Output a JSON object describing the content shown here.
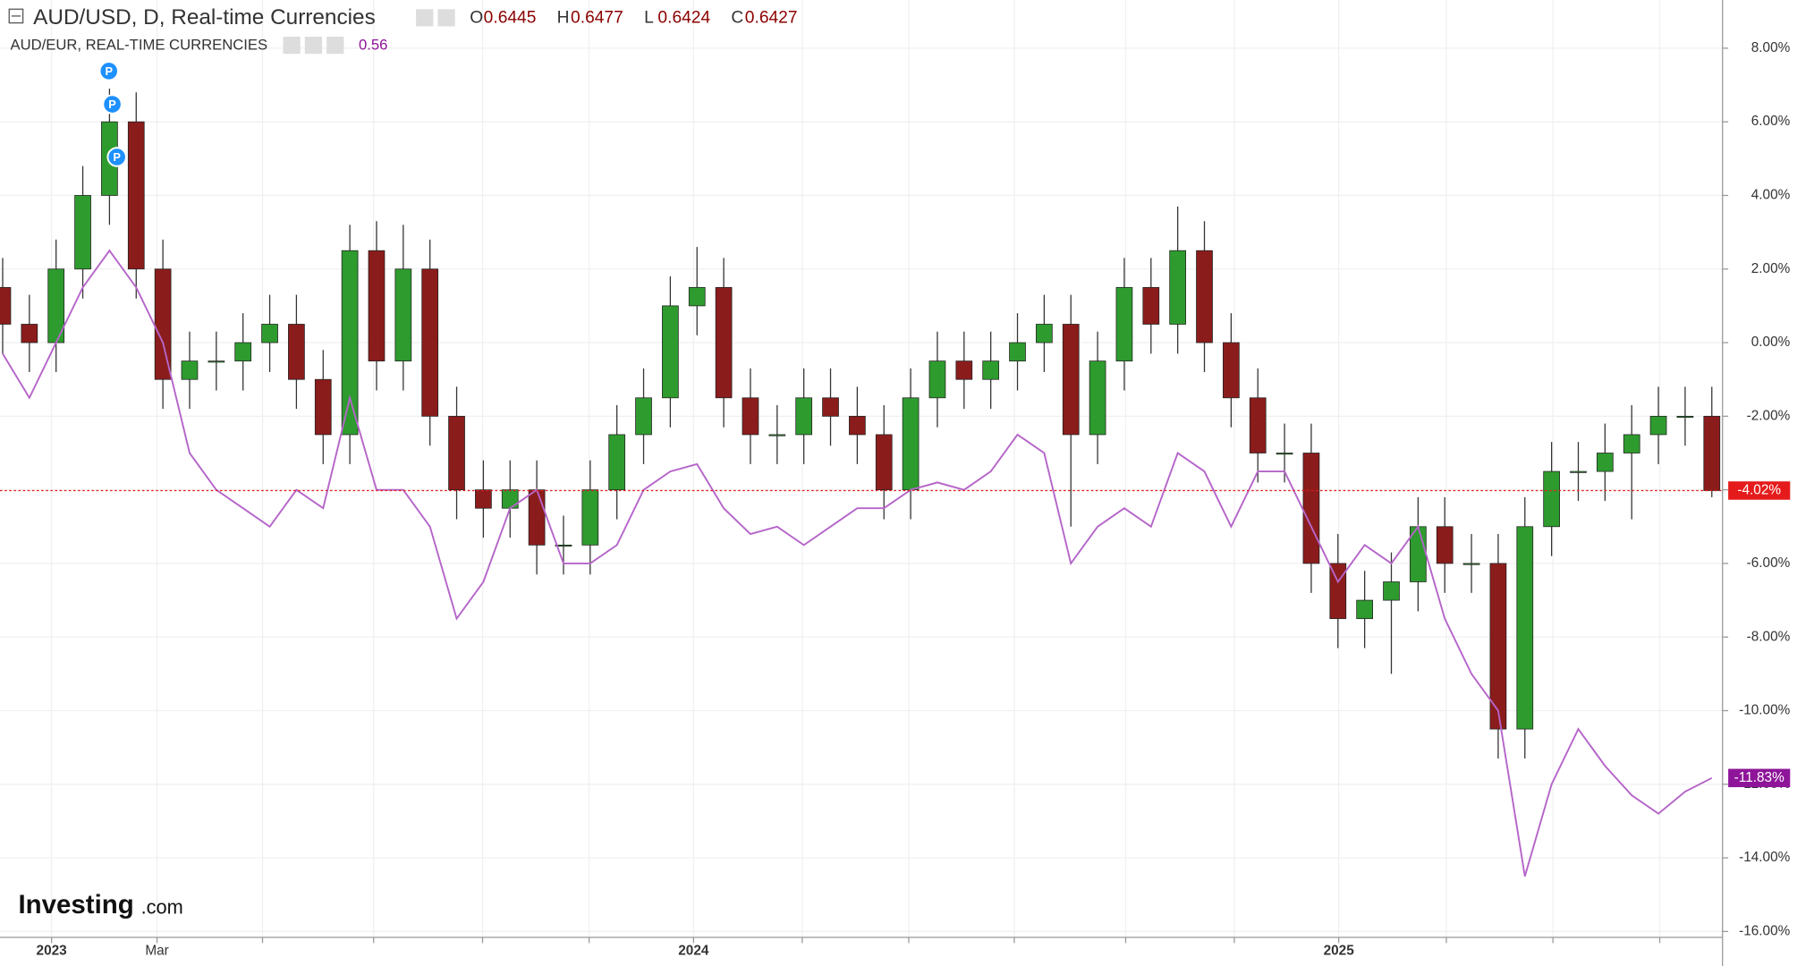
{
  "chart_data": {
    "type": "candlestick",
    "header": {
      "title": "AUD/USD, D, Real-time Currencies",
      "ohlc": [
        {
          "label": "O",
          "value": 0.6445
        },
        {
          "label": "H",
          "value": 0.6477
        },
        {
          "label": "L",
          "value": 0.6424
        },
        {
          "label": "C",
          "value": 0.6427
        }
      ],
      "compare_title": "AUD/EUR, REAL-TIME CURRENCIES",
      "compare_value": 0.56
    },
    "markers": [
      "P",
      "P",
      "P"
    ],
    "logo": {
      "name": "Investing",
      "suffix": ".com"
    },
    "x": [
      0,
      1,
      2,
      3,
      4,
      5,
      6,
      7,
      8,
      9,
      10,
      11,
      12,
      13,
      14,
      15,
      16,
      17,
      18,
      19,
      20,
      21,
      22,
      23,
      24,
      25,
      26,
      27,
      28,
      29,
      30,
      31,
      32,
      33,
      34,
      35,
      36,
      37,
      38,
      39,
      40,
      41,
      42,
      43,
      44,
      45,
      46,
      47,
      48,
      49,
      50,
      51,
      52,
      53,
      54,
      55,
      56,
      57,
      58,
      59,
      60,
      61,
      62,
      63,
      64
    ],
    "xlim": [
      -0.1,
      64.4
    ],
    "xticks": [
      {
        "value": 1.83,
        "label": "2023"
      },
      {
        "value": 5.78,
        "label": "Mar"
      },
      {
        "value": 9.73,
        "label": null
      },
      {
        "value": 13.89,
        "label": null
      },
      {
        "value": 17.97,
        "label": null
      },
      {
        "value": 21.96,
        "label": null
      },
      {
        "value": 25.87,
        "label": "2024"
      },
      {
        "value": 29.94,
        "label": null
      },
      {
        "value": 33.93,
        "label": null
      },
      {
        "value": 37.88,
        "label": null
      },
      {
        "value": 42.05,
        "label": null
      },
      {
        "value": 46.12,
        "label": null
      },
      {
        "value": 50.03,
        "label": "2025"
      },
      {
        "value": 54.06,
        "label": null
      },
      {
        "value": 58.05,
        "label": null
      },
      {
        "value": 62.05,
        "label": null
      }
    ],
    "ylim": [
      -16.16,
      9.31
    ],
    "yticks": [
      {
        "value": 8,
        "label": "8.00%"
      },
      {
        "value": 6,
        "label": "6.00%"
      },
      {
        "value": 4,
        "label": "4.00%"
      },
      {
        "value": 2,
        "label": "2.00%"
      },
      {
        "value": 0,
        "label": "0.00%"
      },
      {
        "value": -2,
        "label": "-2.00%"
      },
      {
        "value": -4,
        "label": "-4.00%"
      },
      {
        "value": -6,
        "label": "-6.00%"
      },
      {
        "value": -8,
        "label": "-8.00%"
      },
      {
        "value": -10,
        "label": "-10.00%"
      },
      {
        "value": -12,
        "label": "-12.00%"
      },
      {
        "value": -14,
        "label": "-14.00%"
      },
      {
        "value": -16,
        "label": "-16.00%"
      }
    ],
    "grid": true,
    "series": [
      {
        "name": "AUD/USD",
        "type": "candlestick",
        "up_color": "#2e9b2e",
        "down_color": "#8b1c1c",
        "color": "#e51b1b",
        "last_label": "-4.02%",
        "open": [
          1.5,
          0.5,
          0,
          2,
          4,
          6,
          2,
          -1,
          -0.5,
          -0.5,
          0,
          0.5,
          -1,
          -2.5,
          2.5,
          -0.5,
          2,
          -2,
          -4,
          -4.5,
          -4,
          -5.5,
          -5.5,
          -4,
          -2.5,
          -1.5,
          1,
          1.5,
          -1.5,
          -2.5,
          -2.5,
          -1.5,
          -2,
          -2.5,
          -4,
          -1.5,
          -0.5,
          -1,
          -0.5,
          0,
          0.5,
          -2.5,
          -0.5,
          1.5,
          0.5,
          2.5,
          0,
          -1.5,
          -3,
          -3,
          -6,
          -7.5,
          -7,
          -6.5,
          -5,
          -6,
          -6,
          -10.5,
          -5,
          -3.5,
          -3.5,
          -3,
          -2.5,
          -2,
          -2
        ],
        "high": [
          2.3,
          1.3,
          2.8,
          4.8,
          6.9,
          6.8,
          2.8,
          0.3,
          0.3,
          0.8,
          1.3,
          1.3,
          -0.2,
          3.2,
          3.3,
          3.2,
          2.8,
          -1.2,
          -3.2,
          -3.2,
          -3.2,
          -4.7,
          -3.2,
          -1.7,
          -0.7,
          1.8,
          2.6,
          2.3,
          -0.7,
          -1.7,
          -0.7,
          -0.7,
          -1.2,
          -1.7,
          -0.7,
          0.3,
          0.3,
          0.3,
          0.8,
          1.3,
          1.3,
          0.3,
          2.3,
          2.3,
          3.7,
          3.3,
          0.8,
          -0.7,
          -2.2,
          -2.2,
          -5.2,
          -6.2,
          -5.7,
          -4.2,
          -4.2,
          -5.2,
          -5.2,
          -4.2,
          -2.7,
          -2.7,
          -2.2,
          -1.7,
          -1.2,
          -1.2,
          -1.2
        ],
        "low": [
          -0.3,
          -0.8,
          -0.8,
          1.2,
          3.2,
          1.2,
          -1.8,
          -1.8,
          -1.3,
          -1.3,
          -0.8,
          -1.8,
          -3.3,
          -3.3,
          -1.3,
          -1.3,
          -2.8,
          -4.8,
          -5.3,
          -5.3,
          -6.3,
          -6.3,
          -6.3,
          -4.8,
          -3.3,
          -2.3,
          0.2,
          -2.3,
          -3.3,
          -3.3,
          -3.3,
          -2.8,
          -3.3,
          -4.8,
          -4.8,
          -2.3,
          -1.8,
          -1.8,
          -1.3,
          -0.8,
          -5,
          -3.3,
          -1.3,
          -0.3,
          -0.3,
          -0.8,
          -2.3,
          -3.8,
          -3.8,
          -6.8,
          -8.3,
          -8.3,
          -9,
          -7.3,
          -6.8,
          -6.8,
          -11.3,
          -11.3,
          -5.8,
          -4.3,
          -4.3,
          -4.8,
          -3.3,
          -2.8,
          -4.2
        ],
        "close": [
          0.5,
          0,
          2,
          4,
          6,
          2,
          -1,
          -0.5,
          -0.5,
          0,
          0.5,
          -1,
          -2.5,
          2.5,
          -0.5,
          2,
          -2,
          -4,
          -4.5,
          -4,
          -5.5,
          -5.5,
          -4,
          -2.5,
          -1.5,
          1,
          1.5,
          -1.5,
          -2.5,
          -2.5,
          -1.5,
          -2,
          -2.5,
          -4,
          -1.5,
          -0.5,
          -1,
          -0.5,
          0,
          0.5,
          -2.5,
          -0.5,
          1.5,
          0.5,
          2.5,
          0,
          -1.5,
          -3,
          -3,
          -6,
          -7.5,
          -7,
          -6.5,
          -5,
          -6,
          -6,
          -10.5,
          -5,
          -3.5,
          -3.5,
          -3,
          -2.5,
          -2,
          -2,
          -4.02
        ]
      },
      {
        "name": "AUD/EUR",
        "type": "line",
        "color": "#b565c9",
        "badge_color": "#8e1599",
        "last_label": "-11.83%",
        "values": [
          -0.3,
          -1.5,
          0,
          1.5,
          2.5,
          1.5,
          0,
          -3,
          -4,
          -4.5,
          -5,
          -4,
          -4.5,
          -1.5,
          -4,
          -4,
          -5,
          -7.5,
          -6.5,
          -4.5,
          -4,
          -6,
          -6,
          -5.5,
          -4,
          -3.5,
          -3.3,
          -4.5,
          -5.2,
          -5,
          -5.5,
          -5,
          -4.5,
          -4.5,
          -4,
          -3.8,
          -4,
          -3.5,
          -2.5,
          -3,
          -6,
          -5,
          -4.5,
          -5,
          -3,
          -3.5,
          -5,
          -3.5,
          -3.5,
          -5,
          -6.5,
          -5.5,
          -6,
          -5,
          -7.5,
          -9,
          -10,
          -14.5,
          -12,
          -10.5,
          -11.5,
          -12.3,
          -12.8,
          -12.2,
          -11.83
        ]
      }
    ]
  }
}
